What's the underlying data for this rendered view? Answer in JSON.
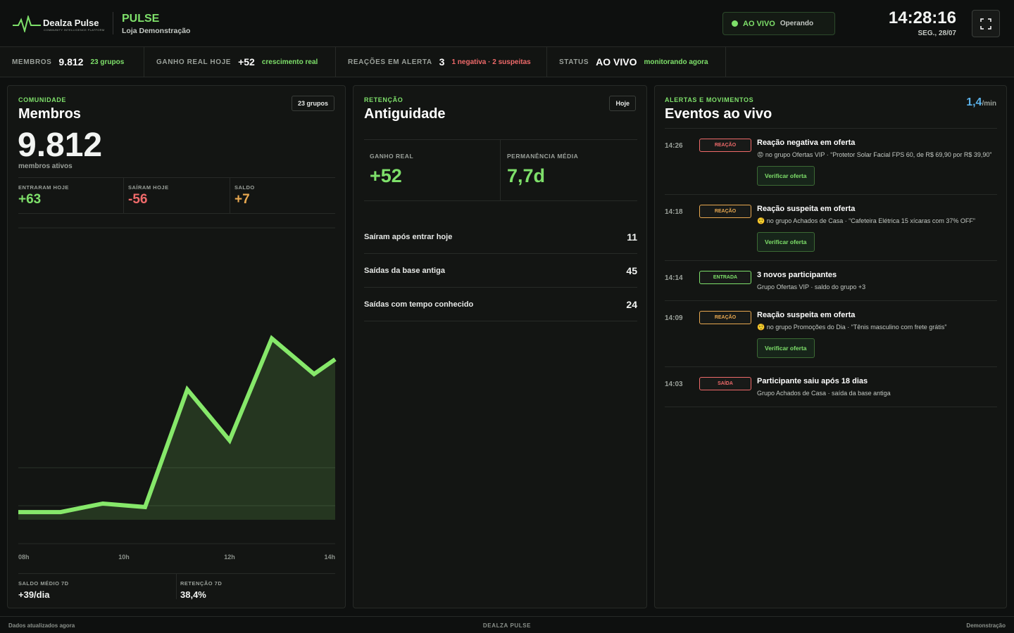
{
  "header": {
    "brand": "Dealza Pulse",
    "tagline": "COMMUNITY INTELLIGENCE PLATFORM",
    "app": "PULSE",
    "store": "Loja Demonstração",
    "live_label": "AO VIVO",
    "live_status": "Operando",
    "time": "14:28:16",
    "date": "SEG., 28/07"
  },
  "stats": [
    {
      "label": "MEMBROS",
      "value": "9.812",
      "note": "23 grupos",
      "note_color": "#7ee06a"
    },
    {
      "label": "GANHO REAL HOJE",
      "value": "+52",
      "note": "crescimento real",
      "note_color": "#7ee06a"
    },
    {
      "label": "REAÇÕES EM ALERTA",
      "value": "3",
      "note": "1 negativa · 2 suspeitas",
      "note_color": "#ef6a6a"
    },
    {
      "label": "STATUS",
      "value": "AO VIVO",
      "note": "monitorando agora",
      "note_color": "#7ee06a"
    }
  ],
  "members": {
    "eyebrow": "COMUNIDADE",
    "title": "Membros",
    "badge": "23 grupos",
    "big": "9.812",
    "caption": "membros ativos",
    "metrics": [
      {
        "label": "ENTRARAM HOJE",
        "value": "+63",
        "color": "#7ee06a"
      },
      {
        "label": "SAÍRAM HOJE",
        "value": "-56",
        "color": "#ef6a6a"
      },
      {
        "label": "SALDO",
        "value": "+7",
        "color": "#e8a850"
      }
    ],
    "chart": {
      "type": "line",
      "color": "#86e86a",
      "x": [
        8,
        8.8,
        9.6,
        10.4,
        11.2,
        12,
        12.8,
        13.6,
        14
      ],
      "values": [
        10,
        10,
        12.7,
        11.6,
        48.8,
        32.7,
        65,
        53.7,
        58.4
      ],
      "xlim": [
        8,
        14
      ],
      "ylim": [
        0,
        100
      ],
      "xticks": [
        {
          "value": 8,
          "label": "08h"
        },
        {
          "value": 10,
          "label": "10h"
        },
        {
          "value": 12,
          "label": "12h"
        },
        {
          "value": 14,
          "label": "14h"
        }
      ]
    },
    "footer": [
      {
        "label": "SALDO MÉDIO 7D",
        "value": "+39/dia"
      },
      {
        "label": "RETENÇÃO 7D",
        "value": "38,4%"
      }
    ]
  },
  "retention": {
    "eyebrow": "RETENÇÃO",
    "title": "Antiguidade",
    "badge": "Hoje",
    "metrics": [
      {
        "label": "GANHO REAL",
        "value": "+52"
      },
      {
        "label": "PERMANÊNCIA MÉDIA",
        "value": "7,7d"
      }
    ],
    "rows": [
      {
        "label": "Saíram após entrar hoje",
        "value": 11
      },
      {
        "label": "Saídas da base antiga",
        "value": 45
      },
      {
        "label": "Saídas com tempo conhecido",
        "value": 24
      }
    ]
  },
  "events": {
    "eyebrow": "ALERTAS E MOVIMENTOS",
    "title": "Eventos ao vivo",
    "rate": "1,4",
    "rate_unit": "/min",
    "items": [
      {
        "time": "14:26",
        "tag": "REAÇÃO",
        "color": "#ef6a6a",
        "title": "Reação negativa em oferta",
        "detail": "😡 no grupo Ofertas VIP · “Protetor Solar Facial FPS 60, de R$ 69,90 por R$ 39,90”",
        "action": "Verificar oferta"
      },
      {
        "time": "14:18",
        "tag": "REAÇÃO",
        "color": "#e8a850",
        "title": "Reação suspeita em oferta",
        "detail": "🤨 no grupo Achados de Casa · “Cafeteira Elétrica 15 xícaras com 37% OFF”",
        "action": "Verificar oferta"
      },
      {
        "time": "14:14",
        "tag": "ENTRADA",
        "color": "#7ee06a",
        "title": "3 novos participantes",
        "detail": "Grupo Ofertas VIP · saldo do grupo +3"
      },
      {
        "time": "14:09",
        "tag": "REAÇÃO",
        "color": "#e8a850",
        "title": "Reação suspeita em oferta",
        "detail": "🤨 no grupo Promoções do Dia · “Tênis masculino com frete grátis”",
        "action": "Verificar oferta"
      },
      {
        "time": "14:03",
        "tag": "SAÍDA",
        "color": "#ef6a6a",
        "title": "Participante saiu após 18 dias",
        "detail": "Grupo Achados de Casa · saída da base antiga"
      }
    ]
  },
  "footer": {
    "left": "Dados atualizados agora",
    "center": "DEALZA PULSE",
    "right": "Demonstração"
  }
}
